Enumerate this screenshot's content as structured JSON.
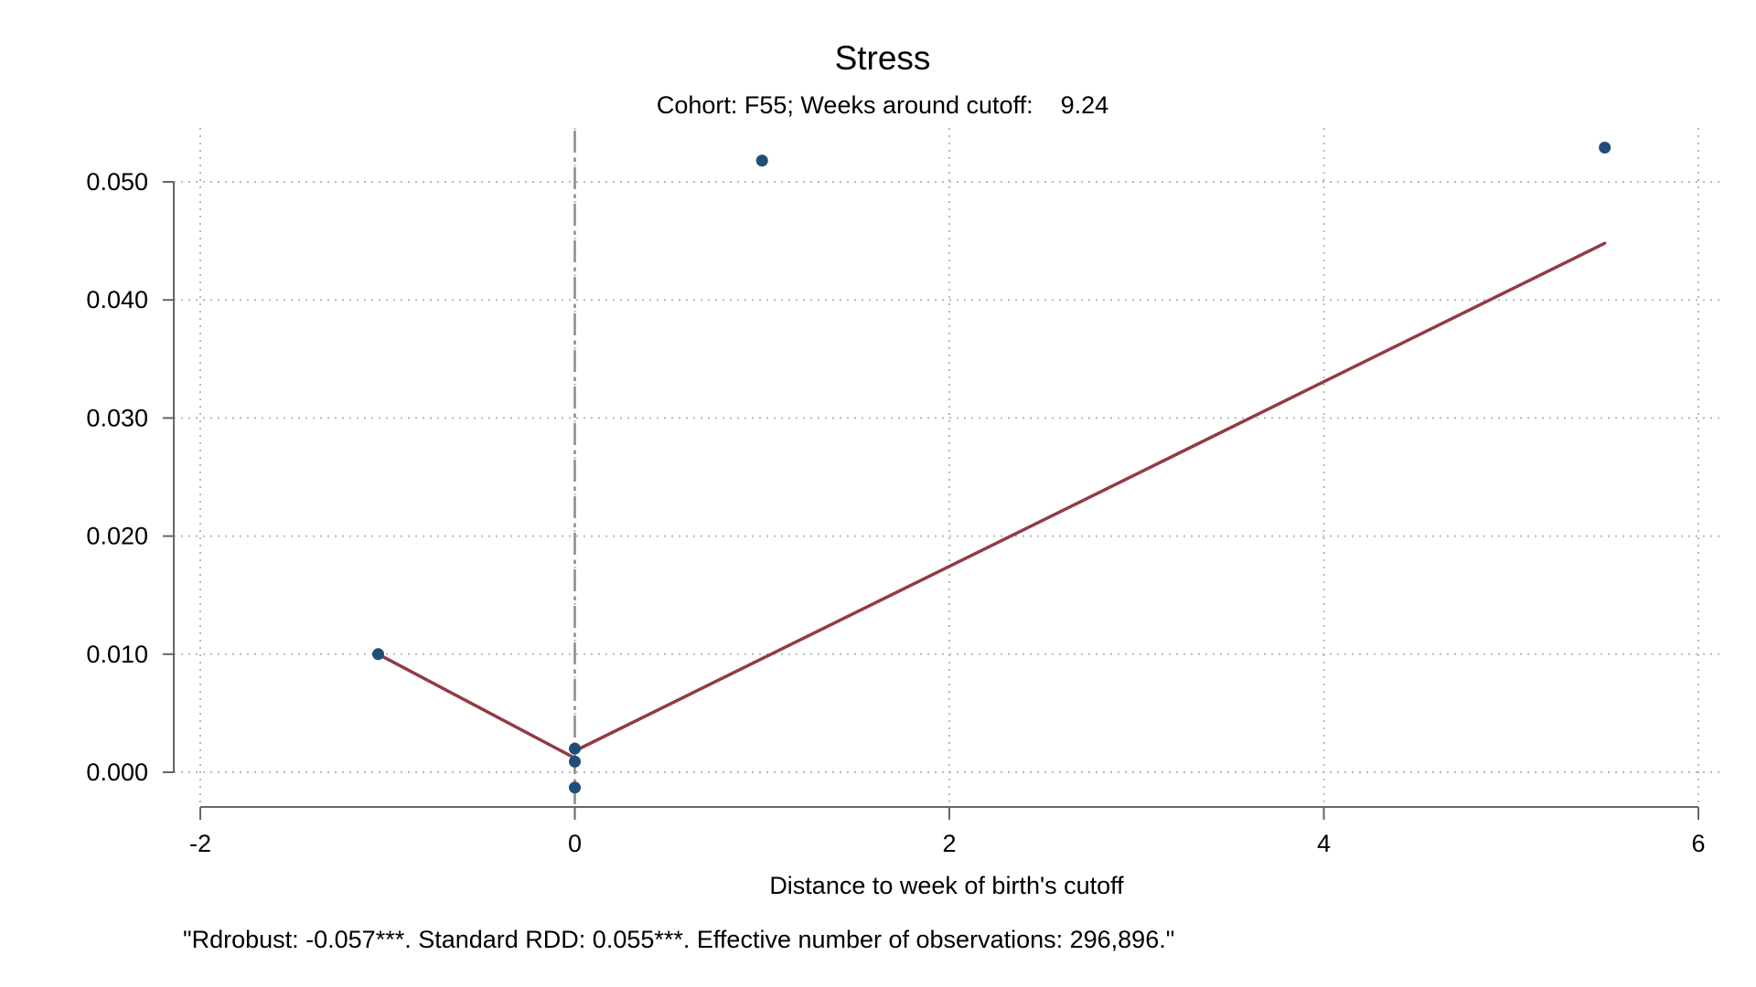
{
  "chart_data": {
    "type": "scatter",
    "title": "Stress",
    "subtitle": "Cohort: F55; Weeks around cutoff:    9.24",
    "xlabel": "Distance to week of birth's cutoff",
    "ylabel": "",
    "note": "\"Rdrobust: -0.057***. Standard RDD: 0.055***. Effective number of observations: 296,896.\"",
    "xlim": [
      -2,
      6
    ],
    "ylim": [
      0.0,
      0.05
    ],
    "x_ticks": [
      -2,
      0,
      2,
      4,
      6
    ],
    "x_tick_labels": [
      "-2",
      "0",
      "2",
      "4",
      "6"
    ],
    "y_ticks": [
      0.0,
      0.01,
      0.02,
      0.03,
      0.04,
      0.05
    ],
    "y_tick_labels": [
      "0.000",
      "0.010",
      "0.020",
      "0.030",
      "0.040",
      "0.050"
    ],
    "grid": true,
    "cutoff_x": 0,
    "points": [
      {
        "x": -1.05,
        "y": 0.01
      },
      {
        "x": 0.0,
        "y": 0.002
      },
      {
        "x": 0.0,
        "y": 0.0009
      },
      {
        "x": 0.0,
        "y": -0.0013
      },
      {
        "x": 1.0,
        "y": 0.0518
      },
      {
        "x": 5.5,
        "y": 0.0529
      }
    ],
    "fit_left": [
      {
        "x": -1.05,
        "y": 0.01
      },
      {
        "x": 0.0,
        "y": 0.0012
      }
    ],
    "fit_right": [
      {
        "x": 0.0,
        "y": 0.0018
      },
      {
        "x": 5.5,
        "y": 0.0448
      }
    ],
    "colors": {
      "points": "#1f4e79",
      "fit": "#943a44",
      "cutoff": "#8a8a8a",
      "axis": "#666666",
      "grid": "#b8b8b8"
    }
  }
}
